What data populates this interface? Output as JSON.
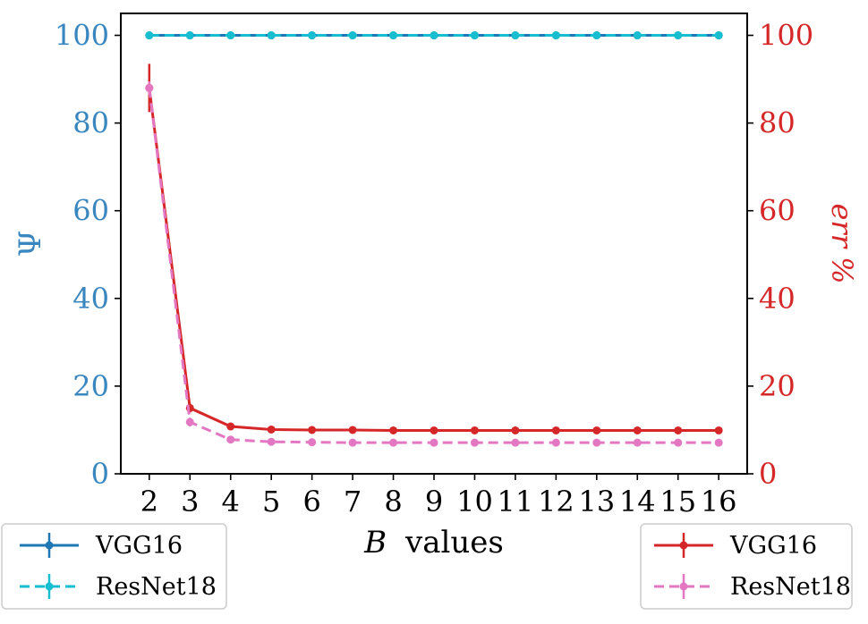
{
  "chart_data": {
    "type": "line",
    "x": [
      2,
      3,
      4,
      5,
      6,
      7,
      8,
      9,
      10,
      11,
      12,
      13,
      14,
      15,
      16
    ],
    "xlabel_var": "B",
    "xlabel_text": "values",
    "xlim": [
      1.3,
      16.7
    ],
    "left_axis": {
      "label": "Ψ",
      "ylim": [
        0,
        105
      ],
      "ticks": [
        0,
        20,
        40,
        60,
        80,
        100
      ],
      "color": "#3a87c0"
    },
    "right_axis": {
      "label": "err %",
      "ylim": [
        0,
        105
      ],
      "ticks": [
        0,
        20,
        40,
        60,
        80,
        100
      ],
      "color": "#d62728"
    },
    "series": [
      {
        "name": "VGG16",
        "axis": "left",
        "color": "#1f77b4",
        "dashed": false,
        "values": [
          100,
          100,
          100,
          100,
          100,
          100,
          100,
          100,
          100,
          100,
          100,
          100,
          100,
          100,
          100
        ]
      },
      {
        "name": "ResNet18",
        "axis": "left",
        "color": "#17becf",
        "dashed": true,
        "values": [
          100,
          100,
          100,
          100,
          100,
          100,
          100,
          100,
          100,
          100,
          100,
          100,
          100,
          100,
          100
        ]
      },
      {
        "name": "VGG16",
        "axis": "right",
        "color": "#d62728",
        "dashed": false,
        "values": [
          88,
          15,
          10.8,
          10.1,
          10.0,
          10.0,
          9.9,
          9.9,
          9.9,
          9.9,
          9.9,
          9.9,
          9.9,
          9.9,
          9.9
        ],
        "errors": [
          5.5,
          1,
          0.4,
          0.2,
          0.2,
          0.2,
          0.2,
          0.2,
          0.2,
          0.2,
          0.2,
          0.2,
          0.2,
          0.2,
          0.2
        ]
      },
      {
        "name": "ResNet18",
        "axis": "right",
        "color": "#e377c2",
        "dashed": true,
        "values": [
          88,
          11.8,
          7.8,
          7.3,
          7.2,
          7.1,
          7.1,
          7.1,
          7.1,
          7.1,
          7.1,
          7.1,
          7.1,
          7.1,
          7.1
        ],
        "errors": [
          1.5,
          1,
          0.3,
          0.2,
          0.2,
          0.2,
          0.2,
          0.2,
          0.2,
          0.2,
          0.2,
          0.2,
          0.2,
          0.2,
          0.2
        ]
      }
    ],
    "legend_left": {
      "placement": "bottom-left",
      "entries": [
        "VGG16",
        "ResNet18"
      ]
    },
    "legend_right": {
      "placement": "bottom-right",
      "entries": [
        "VGG16",
        "ResNet18"
      ]
    }
  }
}
